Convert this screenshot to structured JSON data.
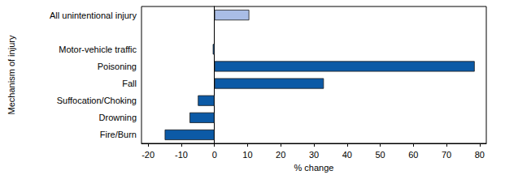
{
  "chart_data": {
    "type": "bar",
    "orientation": "horizontal",
    "categories": [
      "All unintentional injury",
      null,
      "Motor-vehicle traffic",
      "Poisoning",
      "Fall",
      "Suffocation/Choking",
      "Drowning",
      "Fire/Burn"
    ],
    "values": [
      10.5,
      null,
      -0.5,
      78.5,
      33,
      -5,
      -7.5,
      -15
    ],
    "colors": [
      "#a9bde6",
      null,
      "#0c5aa6",
      "#0c5aa6",
      "#0c5aa6",
      "#0c5aa6",
      "#0c5aa6",
      "#0c5aa6"
    ],
    "x_label": "% change",
    "y_label": "Mechanism of injury",
    "xlim": [
      -22,
      82
    ],
    "xticks": [
      -20,
      -10,
      0,
      10,
      20,
      30,
      40,
      50,
      60,
      70,
      80
    ],
    "grid": false
  }
}
